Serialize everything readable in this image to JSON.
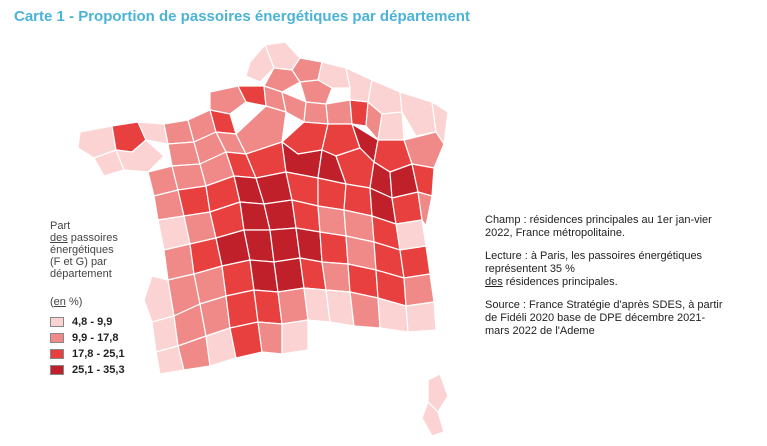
{
  "title": "Carte 1 -  Proportion de passoires énergétiques par département",
  "legend": {
    "title_line1": "Part",
    "title_line2a": "des",
    "title_line2b": " passoires",
    "title_line3": "énergétiques",
    "title_line4": "(F et G) par",
    "title_line5": "département",
    "unit_pre": "(",
    "unit_u": "en",
    "unit_post": " %)",
    "classes": [
      {
        "label": "4,8 - 9,9",
        "color": "#fbd3d2"
      },
      {
        "label": "9,9 - 17,8",
        "color": "#f08a88"
      },
      {
        "label": "17,8 - 25,1",
        "color": "#e8403f"
      },
      {
        "label": "25,1 - 35,3",
        "color": "#c0202a"
      }
    ]
  },
  "notes": {
    "champ": "Champ : résidences principales au 1er jan-vier 2022, France métropolitaine.",
    "lecture_a": "Lecture : à Paris, les passoires énergétiques représentent 35 %",
    "lecture_u": "des",
    "lecture_b": " résidences principales.",
    "source": "Source : France Stratégie d'après SDES, à partir de Fidéli 2020 base de DPE décembre 2021-mars 2022 de l'Ademe"
  },
  "colors": {
    "title": "#4bb3d6",
    "border": "#ffffff"
  }
}
